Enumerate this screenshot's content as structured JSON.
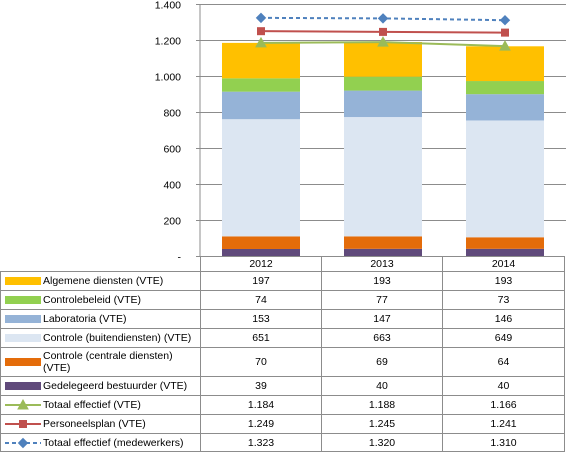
{
  "chart_data": {
    "type": "bar",
    "stacked": true,
    "categories": [
      "2012",
      "2013",
      "2014"
    ],
    "ylim": [
      0,
      1400
    ],
    "yticks": [
      "-",
      "200",
      "400",
      "600",
      "800",
      "1.000",
      "1.200",
      "1.400"
    ],
    "grid": true,
    "legend_placement": "data table below chart",
    "series": [
      {
        "name": "Algemene diensten (VTE)",
        "kind": "bar",
        "color": "#FFC000",
        "values": [
          197,
          193,
          193
        ],
        "labels": [
          "197",
          "193",
          "193"
        ]
      },
      {
        "name": "Controlebeleid (VTE)",
        "kind": "bar",
        "color": "#92D050",
        "values": [
          74,
          77,
          73
        ],
        "labels": [
          "74",
          "77",
          "73"
        ]
      },
      {
        "name": "Laboratoria (VTE)",
        "kind": "bar",
        "color": "#95B3D7",
        "values": [
          153,
          147,
          146
        ],
        "labels": [
          "153",
          "147",
          "146"
        ]
      },
      {
        "name": "Controle (buitendiensten) (VTE)",
        "kind": "bar",
        "color": "#DCE6F2",
        "values": [
          651,
          663,
          649
        ],
        "labels": [
          "651",
          "663",
          "649"
        ]
      },
      {
        "name": "Controle (centrale diensten) (VTE)",
        "kind": "bar",
        "color": "#E46C0A",
        "values": [
          70,
          69,
          64
        ],
        "labels": [
          "70",
          "69",
          "64"
        ]
      },
      {
        "name": "Gedelegeerd bestuurder (VTE)",
        "kind": "bar",
        "color": "#604A7B",
        "values": [
          39,
          40,
          40
        ],
        "labels": [
          "39",
          "40",
          "40"
        ]
      },
      {
        "name": "Totaal effectief (VTE)",
        "kind": "line",
        "marker": "triangle",
        "dash": false,
        "color": "#9BBB59",
        "values": [
          1184,
          1188,
          1166
        ],
        "labels": [
          "1.184",
          "1.188",
          "1.166"
        ]
      },
      {
        "name": "Personeelsplan (VTE)",
        "kind": "line",
        "marker": "square",
        "dash": false,
        "color": "#C0504D",
        "values": [
          1249,
          1245,
          1241
        ],
        "labels": [
          "1.249",
          "1.245",
          "1.241"
        ]
      },
      {
        "name": "Totaal effectief (medewerkers)",
        "kind": "line",
        "marker": "diamond",
        "dash": true,
        "color": "#4F81BD",
        "values": [
          1323,
          1320,
          1310
        ],
        "labels": [
          "1.323",
          "1.320",
          "1.310"
        ]
      }
    ]
  }
}
